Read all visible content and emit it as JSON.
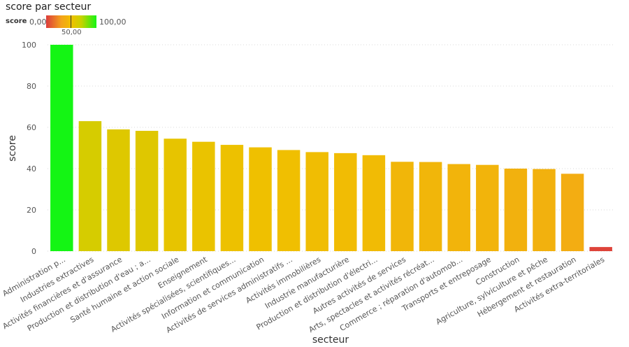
{
  "legend": {
    "title": "score",
    "min_label": "0,00",
    "mid_label": "50,00",
    "max_label": "100,00",
    "colors": [
      "#dc3c3c",
      "#f4a21c",
      "#f0c000",
      "#c8d200",
      "#14f514"
    ]
  },
  "chart_data": {
    "type": "bar",
    "title": "score par secteur",
    "xlabel": "secteur",
    "ylabel": "score",
    "ylim": [
      0,
      100
    ],
    "yticks": [
      "0",
      "20",
      "40",
      "60",
      "80",
      "100"
    ],
    "grid": true,
    "categories": [
      "Administration p...",
      "Industries extractives",
      "Activités financières et d'assurance",
      "Production et distribution d'eau ; a...",
      "Santé humaine et action sociale",
      "Enseignement",
      "Activités spécialisées, scientifiques...",
      "Information et communication",
      "Activités de services administratifs ...",
      "Activités immobilières",
      "Industrie manufacturière",
      "Production et distribution d'électri...",
      "Autres activités de services",
      "Arts, spectacles et activités récréat...",
      "Commerce ; réparation d'automob...",
      "Transports et entreposage",
      "Construction",
      "Agriculture, sylviculture et pêche",
      "Hébergement et restauration",
      "Activités extra-territoriales"
    ],
    "values": [
      100,
      63,
      59,
      58.3,
      54.5,
      53,
      51.5,
      50.3,
      49,
      48,
      47.5,
      46.5,
      43.3,
      43.2,
      42.2,
      41.8,
      40,
      39.8,
      37.5,
      2
    ]
  }
}
